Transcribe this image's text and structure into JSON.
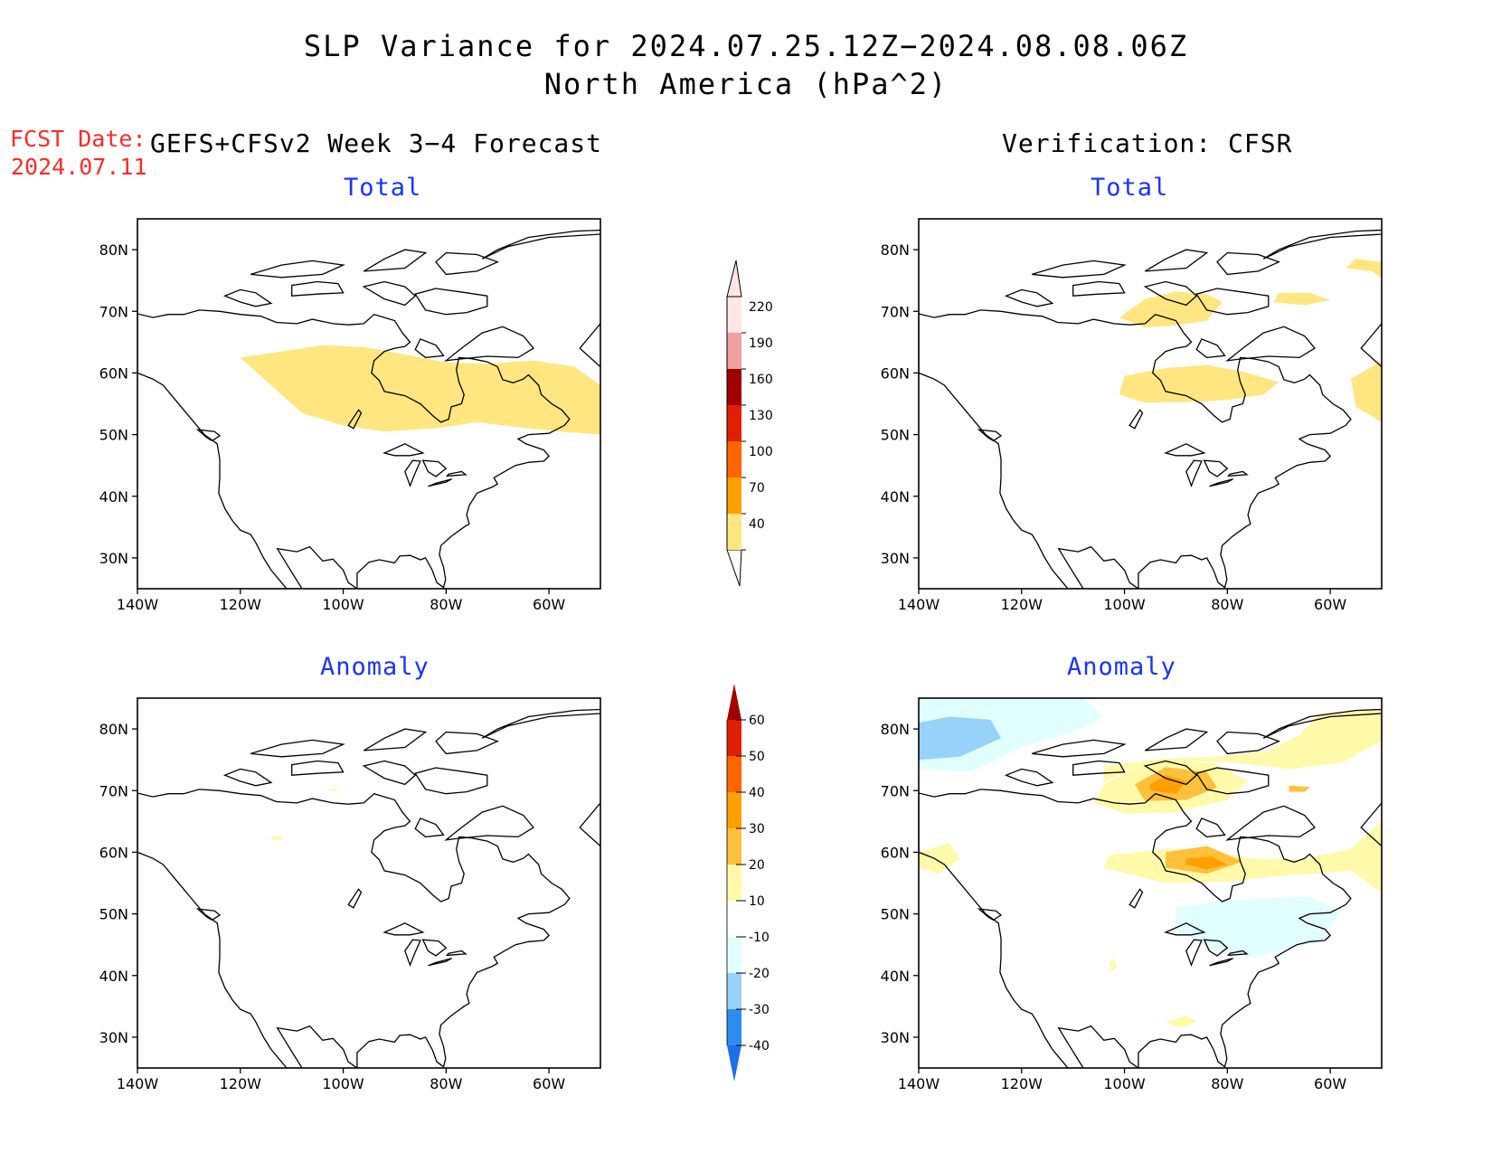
{
  "title": {
    "line1": "SLP Variance for 2024.07.25.12Z−2024.08.08.06Z",
    "line2": "North America (hPa^2)"
  },
  "fcst_date": {
    "label": "FCST Date:",
    "value": "2024.07.11"
  },
  "forecast_header": "GEFS+CFSv2 Week 3−4 Forecast",
  "verification_header": "Verification: CFSR",
  "panels": [
    {
      "id": "fcst-total",
      "subtitle": "Total"
    },
    {
      "id": "verif-total",
      "subtitle": "Total"
    },
    {
      "id": "fcst-anomaly",
      "subtitle": "Anomaly"
    },
    {
      "id": "verif-anomaly",
      "subtitle": "Anomaly"
    }
  ],
  "axes": {
    "lat_ticks": [
      "80N",
      "70N",
      "60N",
      "50N",
      "40N",
      "30N"
    ],
    "lon_ticks": [
      "140W",
      "120W",
      "100W",
      "80W",
      "60W"
    ],
    "lat_range": [
      25,
      85
    ],
    "lon_range": [
      -140,
      -50
    ]
  },
  "total_colorbar": {
    "labels": [
      "40",
      "70",
      "100",
      "130",
      "160",
      "190",
      "220"
    ],
    "colors": [
      "#ffe680",
      "#ffa000",
      "#ff6400",
      "#e01e00",
      "#a00000",
      "#f0a0a0",
      "#fde6e6"
    ]
  },
  "anomaly_colorbar": {
    "labels": [
      "-40",
      "-30",
      "-20",
      "-10",
      "10",
      "20",
      "30",
      "40",
      "50",
      "60"
    ],
    "colors": [
      "#1e6ee6",
      "#2d8cf0",
      "#96d2fa",
      "#e1ffff",
      "#ffffff",
      "#fffaaa",
      "#ffc03c",
      "#ffa000",
      "#ff6400",
      "#e01e00",
      "#a00000"
    ]
  }
}
